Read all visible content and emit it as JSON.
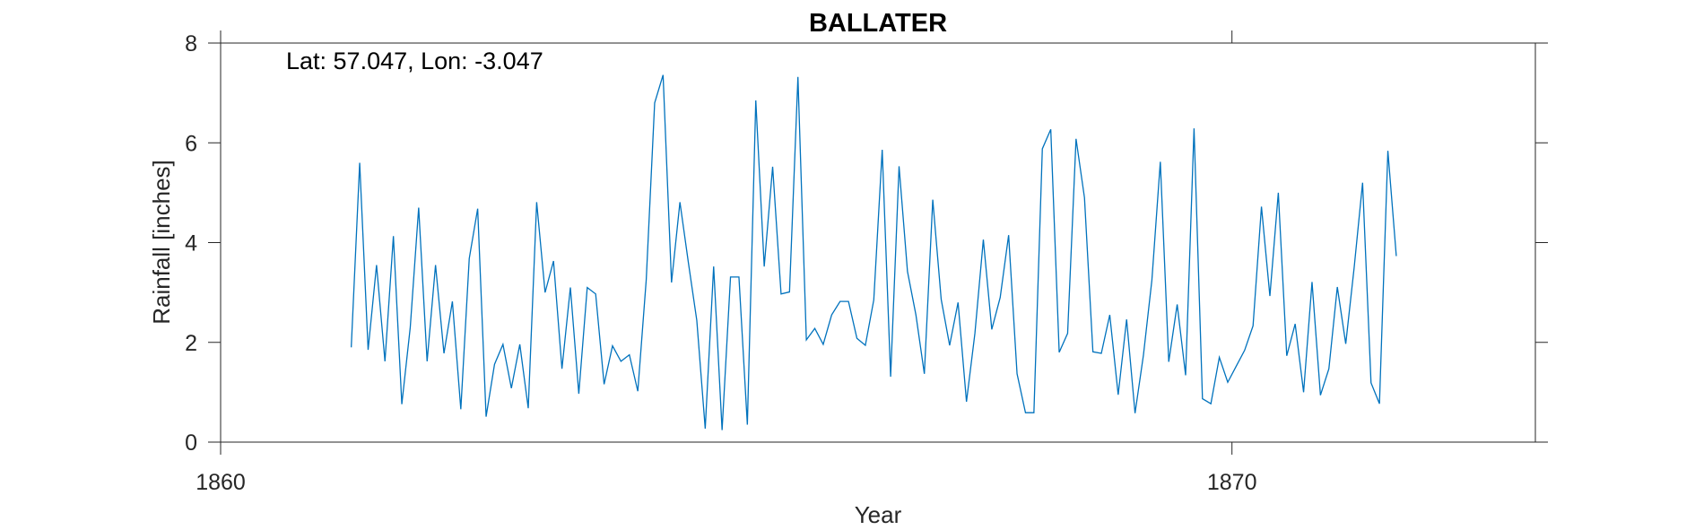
{
  "chart_data": {
    "type": "line",
    "title": "BALLATER",
    "xlabel": "Year",
    "ylabel": "Rainfall [inches]",
    "annotation": "Lat: 57.047, Lon: -3.047",
    "xlim": [
      1860,
      1873
    ],
    "ylim": [
      0,
      8
    ],
    "xticks": [
      1860,
      1870
    ],
    "yticks": [
      0,
      2,
      4,
      6,
      8
    ],
    "grid": false,
    "line_color": "#0072BD",
    "series": [
      {
        "x_start": 1861.2917,
        "x_step": 0.083333,
        "values": [
          1.9,
          5.6,
          1.85,
          3.55,
          1.62,
          4.13,
          0.76,
          2.3,
          4.7,
          1.62,
          3.55,
          1.78,
          2.82,
          0.66,
          3.68,
          4.68,
          0.51,
          1.56,
          1.96,
          1.08,
          1.96,
          0.68,
          4.81,
          3.0,
          3.63,
          1.47,
          3.1,
          0.97,
          3.1,
          2.97,
          1.16,
          1.93,
          1.62,
          1.75,
          1.02,
          3.25,
          6.8,
          7.36,
          3.2,
          4.81,
          3.6,
          2.44,
          0.27,
          3.52,
          0.24,
          3.31,
          3.31,
          0.35,
          6.85,
          3.52,
          5.52,
          2.97,
          3.01,
          7.32,
          2.05,
          2.28,
          1.96,
          2.55,
          2.82,
          2.82,
          2.08,
          1.94,
          2.85,
          5.86,
          1.31,
          5.53,
          3.42,
          2.55,
          1.37,
          4.86,
          2.86,
          1.94,
          2.8,
          0.81,
          2.18,
          4.06,
          2.26,
          2.9,
          4.15,
          1.37,
          0.59,
          0.59,
          5.88,
          6.27,
          1.8,
          2.18,
          6.08,
          4.9,
          1.81,
          1.78,
          2.55,
          0.95,
          2.46,
          0.58,
          1.75,
          3.25,
          5.62,
          1.61,
          2.76,
          1.34,
          6.29,
          0.87,
          0.77,
          1.7,
          1.2,
          1.52,
          1.84,
          2.33,
          4.72,
          2.93,
          5.0,
          1.73,
          2.37,
          1.0,
          3.21,
          0.94,
          1.47,
          3.11,
          1.97,
          3.5,
          5.2,
          1.19,
          0.77,
          5.84,
          3.73
        ]
      }
    ]
  }
}
